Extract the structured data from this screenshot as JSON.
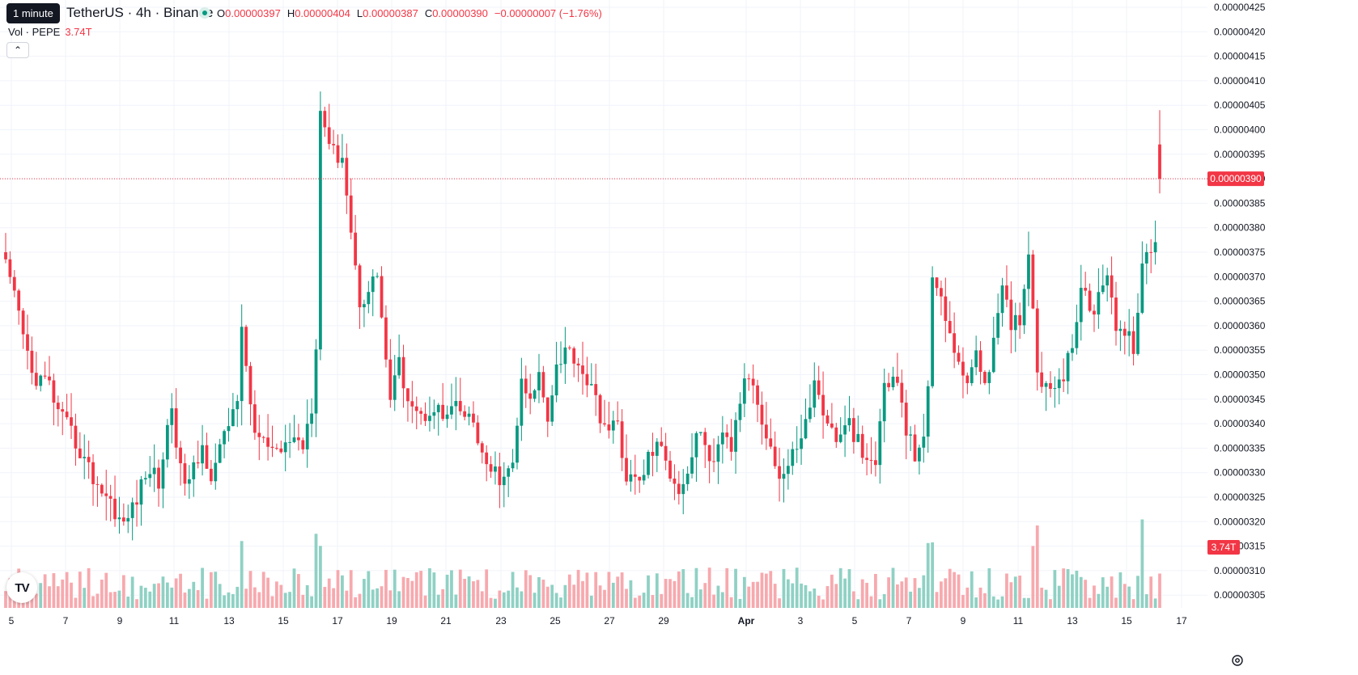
{
  "header": {
    "tooltip": "1 minute",
    "symbol": "TetherUS · 4h · Binance",
    "ohlc": [
      {
        "k": "O",
        "v": "0.00000397"
      },
      {
        "k": "H",
        "v": "0.00000404"
      },
      {
        "k": "L",
        "v": "0.00000387"
      },
      {
        "k": "C",
        "v": "0.00000390"
      }
    ],
    "change": "−0.00000007 (−1.76%)",
    "vol_label": "Vol · PEPE",
    "vol_value": "3.74T",
    "collapse": "⌃"
  },
  "colors": {
    "up": "#089981",
    "down": "#f23645",
    "up_vol": "#8fd1c4",
    "down_vol": "#f7a9ae",
    "grid": "#f0f3fa"
  },
  "logo": "TV",
  "settings_icon": "gear-icon",
  "chart_data": {
    "type": "candlestick",
    "interval": "4h",
    "y_ticks": [
      "0.00000425",
      "0.00000420",
      "0.00000415",
      "0.00000410",
      "0.00000405",
      "0.00000400",
      "0.00000395",
      "0.00000390",
      "0.00000385",
      "0.00000380",
      "0.00000375",
      "0.00000370",
      "0.00000365",
      "0.00000360",
      "0.00000355",
      "0.00000350",
      "0.00000345",
      "0.00000340",
      "0.00000335",
      "0.00000330",
      "0.00000325",
      "0.00000320",
      "0.00000315",
      "0.00000310",
      "0.00000305"
    ],
    "x_ticks": [
      "5",
      "7",
      "9",
      "11",
      "13",
      "15",
      "17",
      "19",
      "21",
      "23",
      "25",
      "27",
      "29",
      "Apr",
      "3",
      "5",
      "7",
      "9",
      "11",
      "13",
      "15",
      "17"
    ],
    "last_price_label": "0.00000390",
    "last_volume_label": "3.74T",
    "key_points_close": [
      [
        0,
        3.72
      ],
      [
        3,
        3.62
      ],
      [
        6,
        3.5
      ],
      [
        10,
        3.48
      ],
      [
        12,
        3.42
      ],
      [
        15,
        3.38
      ],
      [
        20,
        3.29
      ],
      [
        24,
        3.24
      ],
      [
        27,
        3.19
      ],
      [
        30,
        3.25
      ],
      [
        33,
        3.31
      ],
      [
        35,
        3.28
      ],
      [
        38,
        3.44
      ],
      [
        40,
        3.3
      ],
      [
        42,
        3.28
      ],
      [
        45,
        3.35
      ],
      [
        47,
        3.3
      ],
      [
        50,
        3.37
      ],
      [
        53,
        3.46
      ],
      [
        54,
        3.58
      ],
      [
        57,
        3.38
      ],
      [
        60,
        3.35
      ],
      [
        62,
        3.33
      ],
      [
        65,
        3.37
      ],
      [
        68,
        3.36
      ],
      [
        70,
        3.44
      ],
      [
        71,
        3.57
      ],
      [
        72,
        4.04
      ],
      [
        75,
        3.95
      ],
      [
        77,
        3.95
      ],
      [
        79,
        3.79
      ],
      [
        81,
        3.65
      ],
      [
        83,
        3.67
      ],
      [
        85,
        3.71
      ],
      [
        86,
        3.62
      ],
      [
        87,
        3.53
      ],
      [
        88,
        3.45
      ],
      [
        90,
        3.52
      ],
      [
        92,
        3.46
      ],
      [
        95,
        3.41
      ],
      [
        98,
        3.44
      ],
      [
        100,
        3.41
      ],
      [
        103,
        3.43
      ],
      [
        107,
        3.4
      ],
      [
        108,
        3.37
      ],
      [
        110,
        3.3
      ],
      [
        112,
        3.3
      ],
      [
        114,
        3.28
      ],
      [
        116,
        3.32
      ],
      [
        118,
        3.48
      ],
      [
        120,
        3.44
      ],
      [
        122,
        3.5
      ],
      [
        124,
        3.42
      ],
      [
        126,
        3.52
      ],
      [
        128,
        3.55
      ],
      [
        130,
        3.54
      ],
      [
        133,
        3.49
      ],
      [
        136,
        3.42
      ],
      [
        138,
        3.38
      ],
      [
        140,
        3.4
      ],
      [
        142,
        3.29
      ],
      [
        145,
        3.28
      ],
      [
        147,
        3.33
      ],
      [
        149,
        3.36
      ],
      [
        151,
        3.32
      ],
      [
        154,
        3.27
      ],
      [
        156,
        3.3
      ],
      [
        158,
        3.38
      ],
      [
        160,
        3.36
      ],
      [
        162,
        3.31
      ],
      [
        164,
        3.37
      ],
      [
        166,
        3.35
      ],
      [
        168,
        3.45
      ],
      [
        170,
        3.5
      ],
      [
        172,
        3.45
      ],
      [
        175,
        3.35
      ],
      [
        177,
        3.29
      ],
      [
        179,
        3.31
      ],
      [
        181,
        3.36
      ],
      [
        183,
        3.4
      ],
      [
        185,
        3.48
      ],
      [
        187,
        3.43
      ],
      [
        189,
        3.38
      ],
      [
        191,
        3.37
      ],
      [
        193,
        3.4
      ],
      [
        195,
        3.36
      ],
      [
        197,
        3.31
      ],
      [
        199,
        3.32
      ],
      [
        201,
        3.48
      ],
      [
        203,
        3.49
      ],
      [
        205,
        3.45
      ],
      [
        206,
        3.38
      ],
      [
        208,
        3.34
      ],
      [
        210,
        3.38
      ],
      [
        211,
        3.46
      ],
      [
        212,
        3.69
      ],
      [
        214,
        3.67
      ],
      [
        216,
        3.58
      ],
      [
        218,
        3.51
      ],
      [
        220,
        3.5
      ],
      [
        222,
        3.53
      ],
      [
        224,
        3.49
      ],
      [
        226,
        3.56
      ],
      [
        228,
        3.67
      ],
      [
        230,
        3.6
      ],
      [
        232,
        3.62
      ],
      [
        234,
        3.75
      ],
      [
        236,
        3.52
      ],
      [
        238,
        3.47
      ],
      [
        240,
        3.49
      ],
      [
        242,
        3.5
      ],
      [
        244,
        3.55
      ],
      [
        246,
        3.69
      ],
      [
        248,
        3.62
      ],
      [
        250,
        3.66
      ],
      [
        252,
        3.72
      ],
      [
        254,
        3.6
      ],
      [
        256,
        3.58
      ],
      [
        258,
        3.56
      ],
      [
        260,
        3.71
      ],
      [
        262,
        3.76
      ],
      [
        263,
        3.77
      ],
      [
        264,
        3.9
      ]
    ],
    "candle_count": 265
  }
}
